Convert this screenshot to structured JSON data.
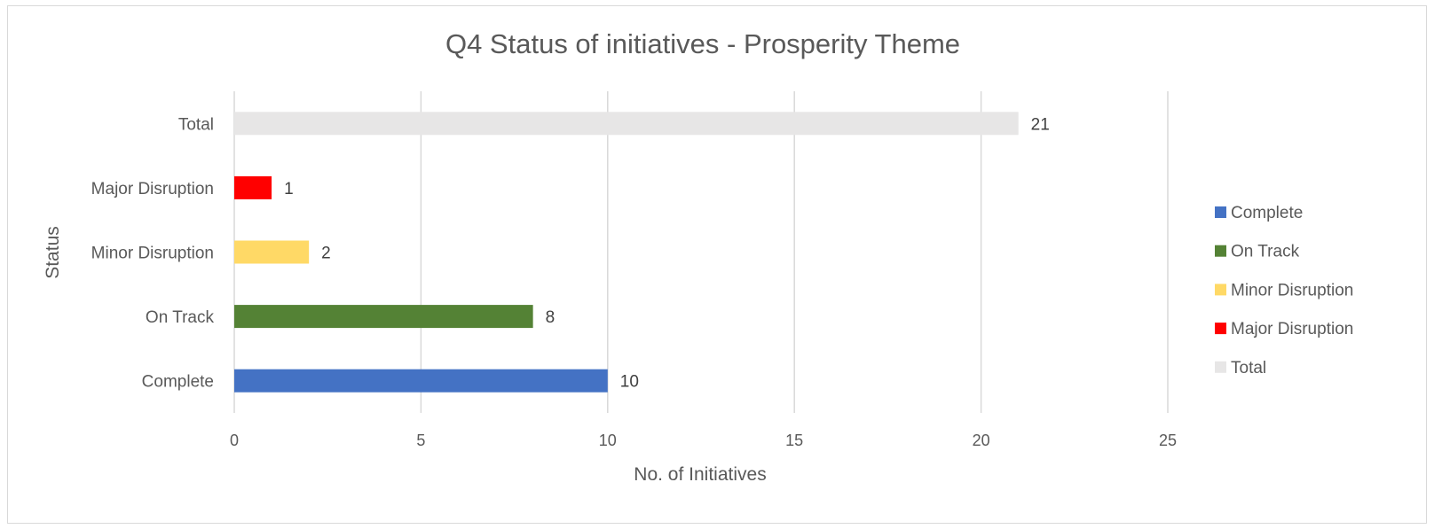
{
  "chart_data": {
    "type": "bar",
    "orientation": "horizontal",
    "title": "Q4 Status of initiatives - Prosperity Theme",
    "xlabel": "No. of Initiatives",
    "ylabel": "Status",
    "xlim": [
      0,
      25
    ],
    "xticks": [
      0,
      5,
      10,
      15,
      20,
      25
    ],
    "grid": true,
    "legend_position": "right",
    "categories": [
      "Complete",
      "On Track",
      "Minor Disruption",
      "Major Disruption",
      "Total"
    ],
    "values": [
      10,
      8,
      2,
      1,
      21
    ],
    "colors": [
      "#4472c4",
      "#548235",
      "#ffd966",
      "#ff0000",
      "#e7e6e6"
    ],
    "legend": [
      {
        "name": "Complete",
        "color": "#4472c4"
      },
      {
        "name": "On Track",
        "color": "#548235"
      },
      {
        "name": "Minor Disruption",
        "color": "#ffd966"
      },
      {
        "name": "Major Disruption",
        "color": "#ff0000"
      },
      {
        "name": "Total",
        "color": "#e7e6e6"
      }
    ]
  }
}
